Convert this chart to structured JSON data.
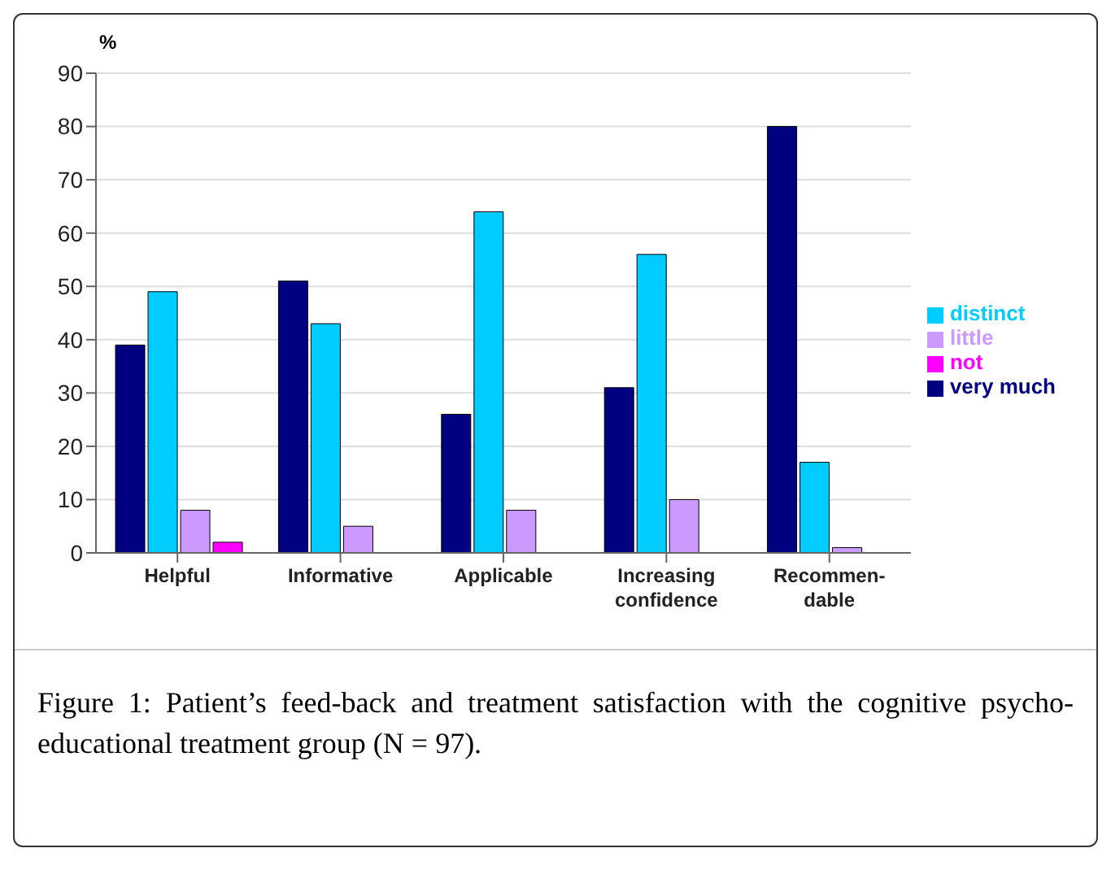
{
  "chart_data": {
    "type": "bar",
    "ylabel": "%",
    "categories": [
      "Helpful",
      "Informative",
      "Applicable",
      "Increasing confidence",
      "Recommen-dable"
    ],
    "series": [
      {
        "name": "very much",
        "color": "#000080",
        "values": [
          39,
          51,
          26,
          31,
          80
        ]
      },
      {
        "name": "distinct",
        "color": "#00ccff",
        "values": [
          49,
          43,
          64,
          56,
          17
        ]
      },
      {
        "name": "little",
        "color": "#cc99ff",
        "values": [
          8,
          5,
          8,
          10,
          1
        ]
      },
      {
        "name": "not",
        "color": "#ff00ff",
        "values": [
          2,
          0,
          0,
          0,
          0
        ]
      }
    ],
    "ylim": [
      0,
      90
    ],
    "yticks": [
      0,
      10,
      20,
      30,
      40,
      50,
      60,
      70,
      80,
      90
    ],
    "grid": "y",
    "legend": "right",
    "annotations": [
      "Figure 1: Patient’s feed-back and treatment satisfaction with the cognitive psycho-educational treatment group (N = 97)."
    ]
  }
}
